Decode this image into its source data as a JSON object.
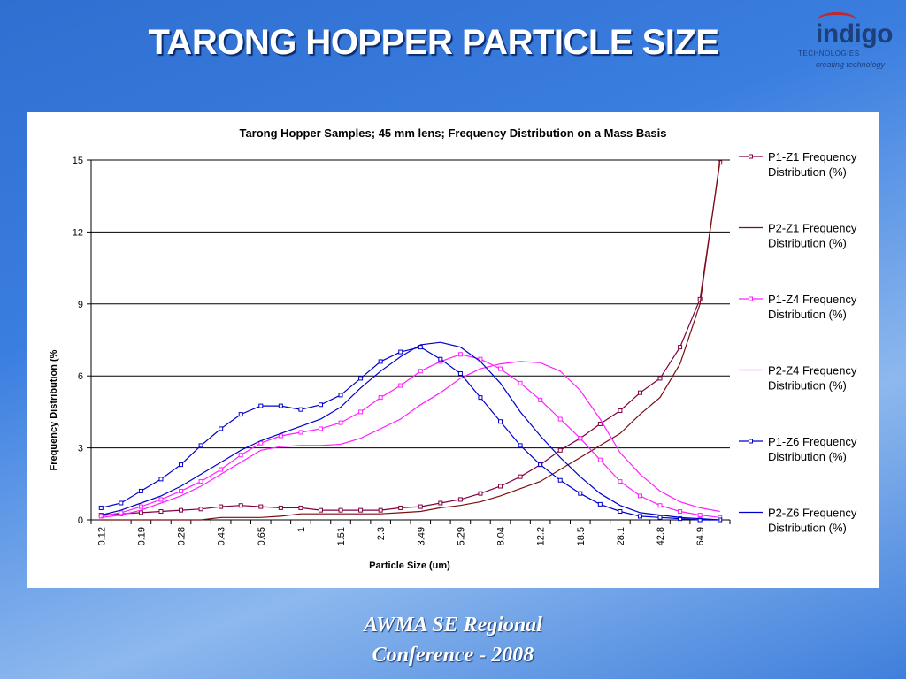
{
  "slide": {
    "title": "TARONG HOPPER PARTICLE SIZE",
    "footer_line1": "AWMA SE Regional",
    "footer_line2": "Conference - 2008"
  },
  "logo": {
    "word": "indigo",
    "sub": "TECHNOLOGIES",
    "tagline": "creating technology"
  },
  "colors": {
    "P1-Z1": "#800040",
    "P2-Z1": "#7a0f0f",
    "P1-Z4": "#ff20ff",
    "P2-Z4": "#ff20ff",
    "P1-Z6": "#0000cc",
    "P2-Z6": "#0000cc"
  },
  "chart_data": {
    "type": "line",
    "title": "Tarong Hopper Samples; 45 mm lens; Frequency Distribution on a Mass Basis",
    "xlabel": "Particle Size (um)",
    "ylabel": "Frequency Distribution (%",
    "ylim": [
      0,
      15
    ],
    "yticks": [
      0,
      3,
      6,
      9,
      12,
      15
    ],
    "grid": "horizontal",
    "legend_position": "right",
    "x_tick_labels": [
      "0.12",
      "0.19",
      "0.28",
      "0.43",
      "0.65",
      "1",
      "1.51",
      "2.3",
      "3.49",
      "5.29",
      "8.04",
      "12.2",
      "18.5",
      "28.1",
      "42.8",
      "64.9"
    ],
    "series": [
      {
        "name": "P1-Z1 Frequency Distribution (%)",
        "key": "P1-Z1",
        "marker": "square",
        "values": [
          0.2,
          0.25,
          0.3,
          0.35,
          0.4,
          0.45,
          0.55,
          0.6,
          0.55,
          0.5,
          0.5,
          0.4,
          0.4,
          0.4,
          0.4,
          0.5,
          0.55,
          0.7,
          0.85,
          1.1,
          1.4,
          1.8,
          2.3,
          2.9,
          3.4,
          4.0,
          4.55,
          5.3,
          5.9,
          7.2,
          9.2,
          14.9
        ]
      },
      {
        "name": "P2-Z1 Frequency Distribution (%)",
        "key": "P2-Z1",
        "marker": "none",
        "values": [
          0,
          0,
          0,
          0,
          0,
          0,
          0.1,
          0.1,
          0.1,
          0.15,
          0.25,
          0.25,
          0.25,
          0.25,
          0.25,
          0.3,
          0.35,
          0.5,
          0.6,
          0.75,
          1.0,
          1.3,
          1.6,
          2.1,
          2.6,
          3.1,
          3.6,
          4.4,
          5.1,
          6.5,
          9.0,
          15.0
        ]
      },
      {
        "name": "P1-Z4 Frequency Distribution (%)",
        "key": "P1-Z4",
        "marker": "square",
        "values": [
          0.15,
          0.3,
          0.55,
          0.85,
          1.2,
          1.6,
          2.1,
          2.7,
          3.2,
          3.5,
          3.65,
          3.8,
          4.05,
          4.5,
          5.1,
          5.6,
          6.2,
          6.6,
          6.9,
          6.7,
          6.3,
          5.7,
          5.0,
          4.2,
          3.4,
          2.5,
          1.6,
          1.0,
          0.6,
          0.35,
          0.2,
          0.1
        ]
      },
      {
        "name": "P2-Z4 Frequency Distribution (%)",
        "key": "P2-Z4",
        "marker": "none",
        "values": [
          0.1,
          0.2,
          0.4,
          0.7,
          1.0,
          1.4,
          1.9,
          2.4,
          2.9,
          3.05,
          3.1,
          3.1,
          3.15,
          3.4,
          3.8,
          4.2,
          4.8,
          5.3,
          5.9,
          6.3,
          6.5,
          6.6,
          6.55,
          6.2,
          5.4,
          4.2,
          2.8,
          1.9,
          1.2,
          0.75,
          0.5,
          0.35
        ]
      },
      {
        "name": "P1-Z6 Frequency Distribution (%)",
        "key": "P1-Z6",
        "marker": "square",
        "values": [
          0.5,
          0.7,
          1.2,
          1.7,
          2.3,
          3.1,
          3.8,
          4.4,
          4.75,
          4.75,
          4.6,
          4.8,
          5.2,
          5.9,
          6.6,
          7.0,
          7.2,
          6.7,
          6.1,
          5.1,
          4.1,
          3.1,
          2.3,
          1.65,
          1.1,
          0.65,
          0.35,
          0.15,
          0.1,
          0.05,
          0,
          0
        ]
      },
      {
        "name": "P2-Z6 Frequency Distribution (%)",
        "key": "P2-Z6",
        "marker": "none",
        "values": [
          0.2,
          0.4,
          0.7,
          1.0,
          1.4,
          1.9,
          2.4,
          2.9,
          3.3,
          3.6,
          3.9,
          4.2,
          4.7,
          5.5,
          6.2,
          6.8,
          7.3,
          7.4,
          7.2,
          6.6,
          5.7,
          4.5,
          3.5,
          2.6,
          1.8,
          1.1,
          0.6,
          0.3,
          0.2,
          0.1,
          0.05,
          0
        ]
      }
    ]
  }
}
